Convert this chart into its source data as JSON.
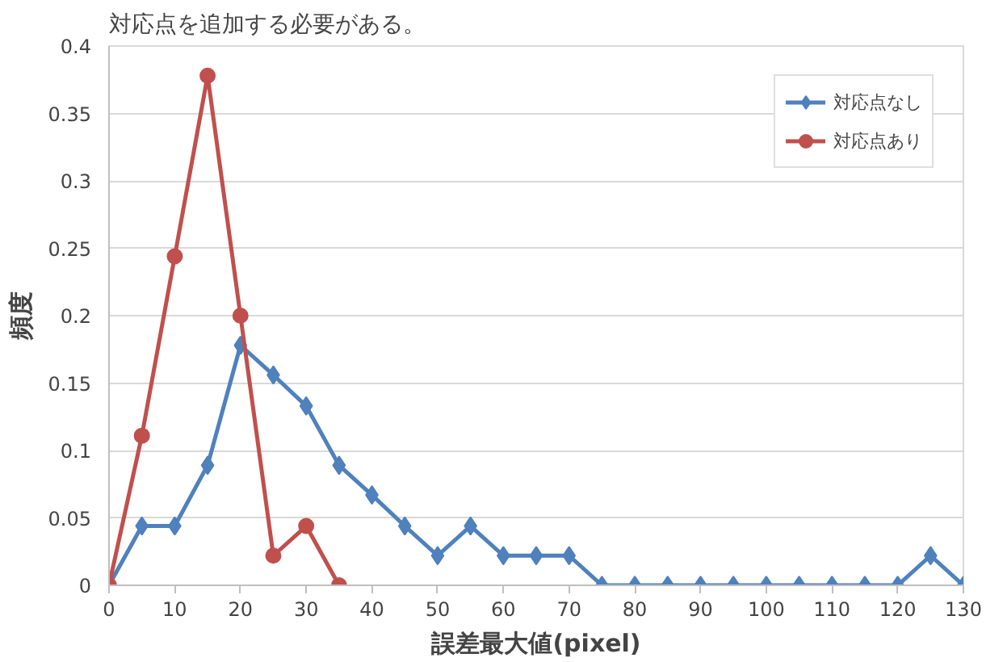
{
  "chart_data": {
    "type": "line",
    "xlabel": "誤差最大値(pixel)",
    "ylabel": "頻度",
    "annotations": [
      "対応点を追加する必要がある。"
    ],
    "x": [
      0,
      5,
      10,
      15,
      20,
      25,
      30,
      35,
      40,
      45,
      50,
      55,
      60,
      65,
      70,
      75,
      80,
      85,
      90,
      95,
      100,
      105,
      110,
      115,
      120,
      125,
      130
    ],
    "series": [
      {
        "name": "対応点なし",
        "color": "#4f81bd",
        "marker": "diamond",
        "values": [
          0,
          0.044,
          0.044,
          0.089,
          0.178,
          0.156,
          0.133,
          0.089,
          0.067,
          0.044,
          0.022,
          0.044,
          0.022,
          0.022,
          0.022,
          0,
          0,
          0,
          0,
          0,
          0,
          0,
          0,
          0,
          0,
          0.022,
          0
        ]
      },
      {
        "name": "対応点あり",
        "color": "#c0504d",
        "marker": "circle",
        "x": [
          0,
          5,
          10,
          15,
          20,
          25,
          30,
          35
        ],
        "values": [
          0,
          0.111,
          0.244,
          0.378,
          0.2,
          0.022,
          0.044,
          0
        ]
      }
    ],
    "xlim": [
      0,
      130
    ],
    "xticks": [
      0,
      10,
      20,
      30,
      40,
      50,
      60,
      70,
      80,
      90,
      100,
      110,
      120,
      130
    ],
    "ylim": [
      0,
      0.4
    ],
    "yticks": [
      0,
      0.05,
      0.1,
      0.15,
      0.2,
      0.25,
      0.3,
      0.35,
      0.4
    ],
    "grid": "y",
    "legend": "top right",
    "line_style": "solid"
  }
}
